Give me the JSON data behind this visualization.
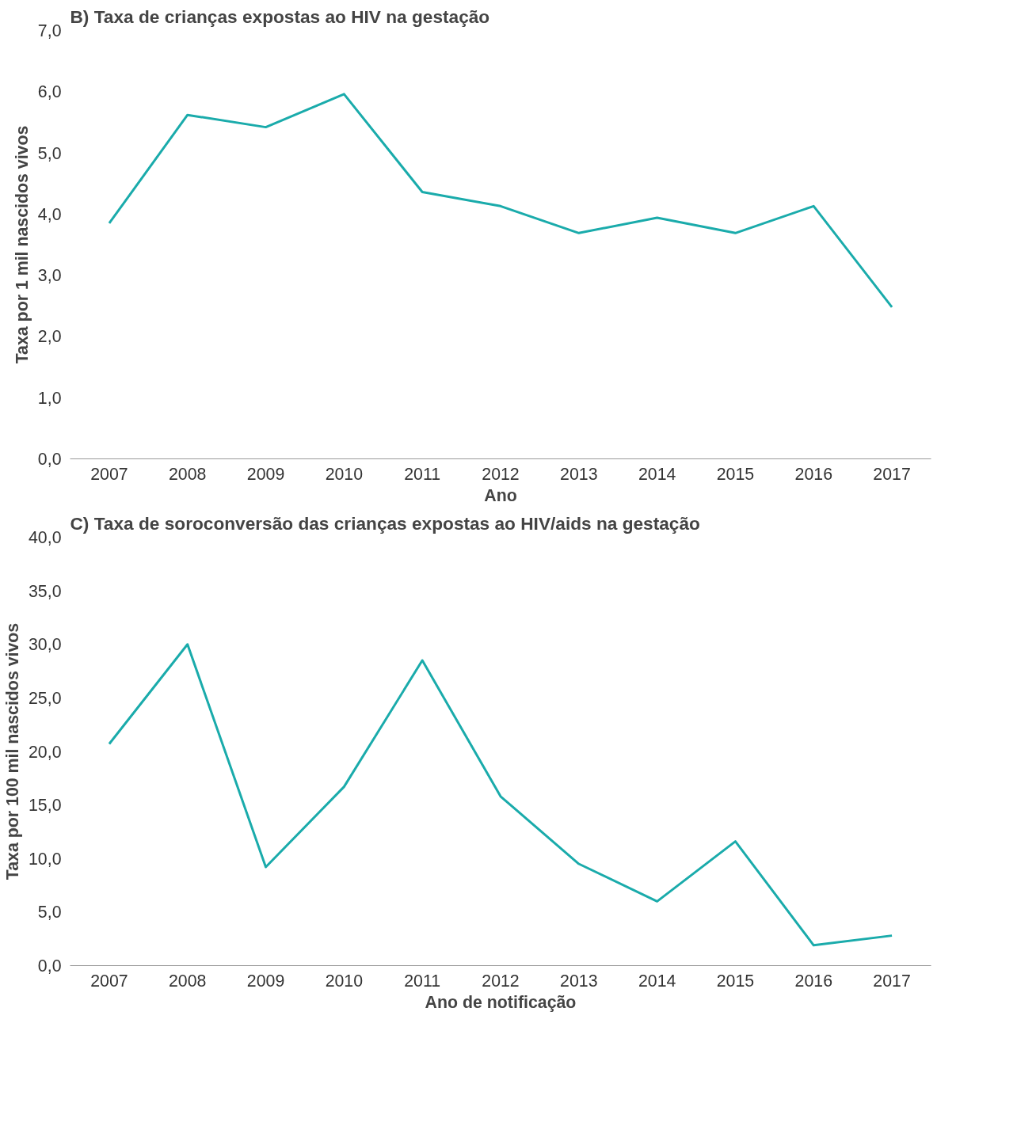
{
  "chart_data": [
    {
      "type": "line",
      "title": "B) Taxa de crianças expostas ao HIV na gestação",
      "xlabel": "Ano",
      "ylabel": "Taxa por 1 mil nascidos vivos",
      "categories": [
        "2007",
        "2008",
        "2009",
        "2010",
        "2011",
        "2012",
        "2013",
        "2014",
        "2015",
        "2016",
        "2017"
      ],
      "series": [
        {
          "color": "#1aabab",
          "values": [
            3.85,
            5.62,
            5.42,
            5.96,
            4.36,
            4.13,
            3.69,
            3.94,
            3.69,
            4.13,
            2.48
          ]
        }
      ],
      "ylim": [
        0,
        7
      ],
      "yticks": [
        {
          "value": 0,
          "label": "0,0"
        },
        {
          "value": 1,
          "label": "1,0"
        },
        {
          "value": 2,
          "label": "2,0"
        },
        {
          "value": 3,
          "label": "3,0"
        },
        {
          "value": 4,
          "label": "4,0"
        },
        {
          "value": 5,
          "label": "5,0"
        },
        {
          "value": 6,
          "label": "6,0"
        },
        {
          "value": 7,
          "label": "7,0"
        }
      ],
      "grid": false,
      "marker": "none",
      "line_style": "solid"
    },
    {
      "type": "line",
      "title": "C) Taxa de soroconversão das crianças expostas ao HIV/aids na gestação",
      "xlabel": "Ano de notificação",
      "ylabel": "Taxa por 100 mil nascidos vivos",
      "categories": [
        "2007",
        "2008",
        "2009",
        "2010",
        "2011",
        "2012",
        "2013",
        "2014",
        "2015",
        "2016",
        "2017"
      ],
      "series": [
        {
          "color": "#1aabab",
          "values": [
            20.7,
            30.0,
            9.2,
            16.7,
            28.5,
            15.8,
            9.5,
            6.0,
            11.6,
            1.9,
            2.8
          ]
        }
      ],
      "ylim": [
        0,
        40
      ],
      "yticks": [
        {
          "value": 0,
          "label": "0,0"
        },
        {
          "value": 5,
          "label": "5,0"
        },
        {
          "value": 10,
          "label": "10,0"
        },
        {
          "value": 15,
          "label": "15,0"
        },
        {
          "value": 20,
          "label": "20,0"
        },
        {
          "value": 25,
          "label": "25,0"
        },
        {
          "value": 30,
          "label": "30,0"
        },
        {
          "value": 35,
          "label": "35,0"
        },
        {
          "value": 40,
          "label": "40,0"
        }
      ],
      "grid": false,
      "marker": "none",
      "line_style": "solid"
    }
  ]
}
